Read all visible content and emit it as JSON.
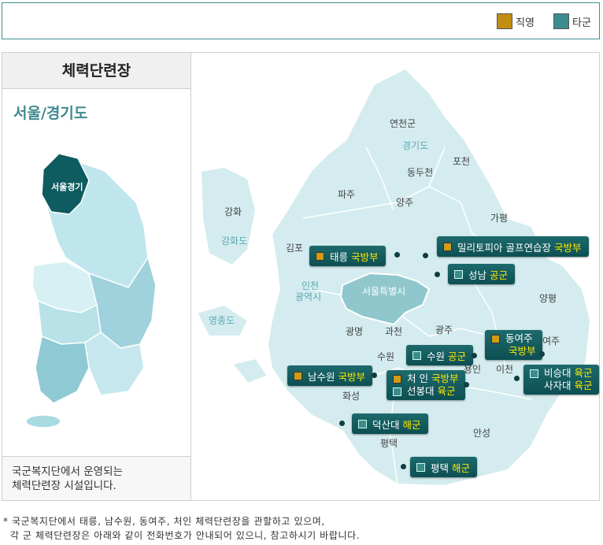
{
  "legend": {
    "direct": "직영",
    "other": "타군"
  },
  "colors": {
    "direct": "#d39b14",
    "other": "#3c8c8f",
    "highlight": "#ffe800"
  },
  "left": {
    "title": "체력단련장",
    "region": "서울/경기도",
    "korea_label": "서울경기",
    "caption_1": "국군복지단에서 운영되는",
    "caption_2": "체력단련장 시설입니다."
  },
  "map": {
    "regions": {
      "yeoncheon": "연천군",
      "gyeonggi": "경기도",
      "dongducheon": "동두천",
      "pocheon": "포천",
      "paju": "파주",
      "yangju": "양주",
      "gapyeong": "가평",
      "ganghwa": "강화",
      "ganghwado": "강화도",
      "gimpo": "김포",
      "incheon_1": "인천",
      "incheon_2": "광역시",
      "seoul": "서울특별시",
      "yeongjongdo": "영종도",
      "gwangmyeong": "광명",
      "gwacheon": "과천",
      "gwangju": "광주",
      "yangpyeong": "양평",
      "yeoju": "여주",
      "suwon": "수원",
      "yongin": "용인",
      "icheon": "이천",
      "hwaseong": "화성",
      "anseong": "안성",
      "pyeongtaek": "평택"
    },
    "facilities": [
      {
        "name": "태릉",
        "branch": "국방부",
        "type": "direct"
      },
      {
        "name": "밀리토피아 골프연습장",
        "branch": "국방부",
        "type": "direct"
      },
      {
        "name": "성남",
        "branch": "공군",
        "type": "other"
      },
      {
        "name": "동여주",
        "branch": "국방부",
        "type": "direct"
      },
      {
        "name": "수원",
        "branch": "공군",
        "type": "other"
      },
      {
        "name": "비승대",
        "branch": "육군",
        "type": "other"
      },
      {
        "name": "사자대",
        "branch": "육군",
        "type": "other"
      },
      {
        "name": "남수원",
        "branch": "국방부",
        "type": "direct"
      },
      {
        "name": "처  인",
        "branch": "국방부",
        "type": "direct"
      },
      {
        "name": "선봉대",
        "branch": "육군",
        "type": "other"
      },
      {
        "name": "덕산대",
        "branch": "해군",
        "type": "other"
      },
      {
        "name": "평택",
        "branch": "해군",
        "type": "other"
      }
    ]
  },
  "footnote": {
    "line1": "* 국군복지단에서 태릉, 남수원, 동여주, 처인 체력단련장을 관할하고 있으며,",
    "line2": "  각 군 체력단련장은 아래와 같이 전화번호가 안내되어 있으니, 참고하시기 바랍니다."
  }
}
